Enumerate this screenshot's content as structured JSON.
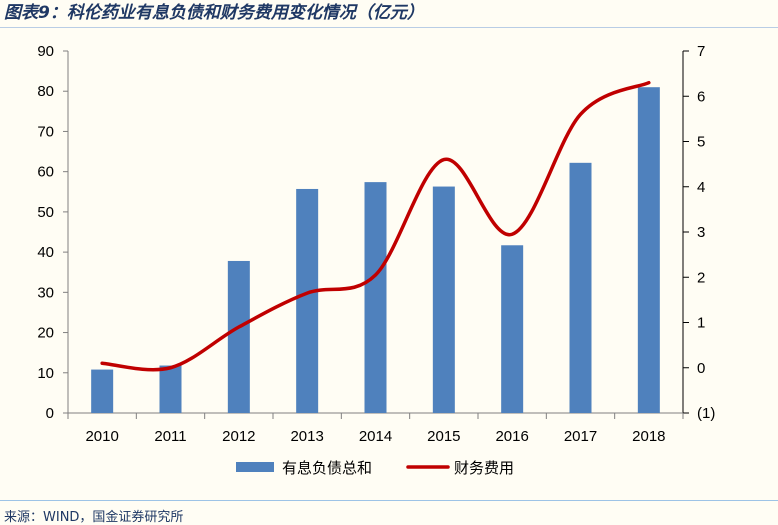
{
  "title": "图表9：科伦药业有息负债和财务费用变化情况（亿元）",
  "source": "来源：WIND，国金证券研究所",
  "chart_data": {
    "type": "bar+line",
    "categories": [
      "2010",
      "2011",
      "2012",
      "2013",
      "2014",
      "2015",
      "2016",
      "2017",
      "2018"
    ],
    "series": [
      {
        "name": "有息负债总和",
        "type": "bar",
        "axis": "left",
        "color": "#4f81bd",
        "values": [
          10.8,
          11.8,
          37.8,
          55.7,
          57.4,
          56.3,
          41.7,
          62.2,
          81.0
        ]
      },
      {
        "name": "财务费用",
        "type": "line",
        "axis": "right",
        "color": "#c00000",
        "values": [
          0.1,
          0.0,
          0.9,
          1.65,
          2.05,
          4.6,
          2.95,
          5.6,
          6.3
        ]
      }
    ],
    "y_left": {
      "min": 0,
      "max": 90,
      "ticks": [
        "0",
        "10",
        "20",
        "30",
        "40",
        "50",
        "60",
        "70",
        "80",
        "90"
      ]
    },
    "y_right": {
      "min": -1,
      "max": 7,
      "ticks": [
        "(1)",
        "0",
        "1",
        "2",
        "3",
        "4",
        "5",
        "6",
        "7"
      ],
      "negative_color": "#ff0000"
    },
    "legend_position": "bottom",
    "grid": false
  }
}
